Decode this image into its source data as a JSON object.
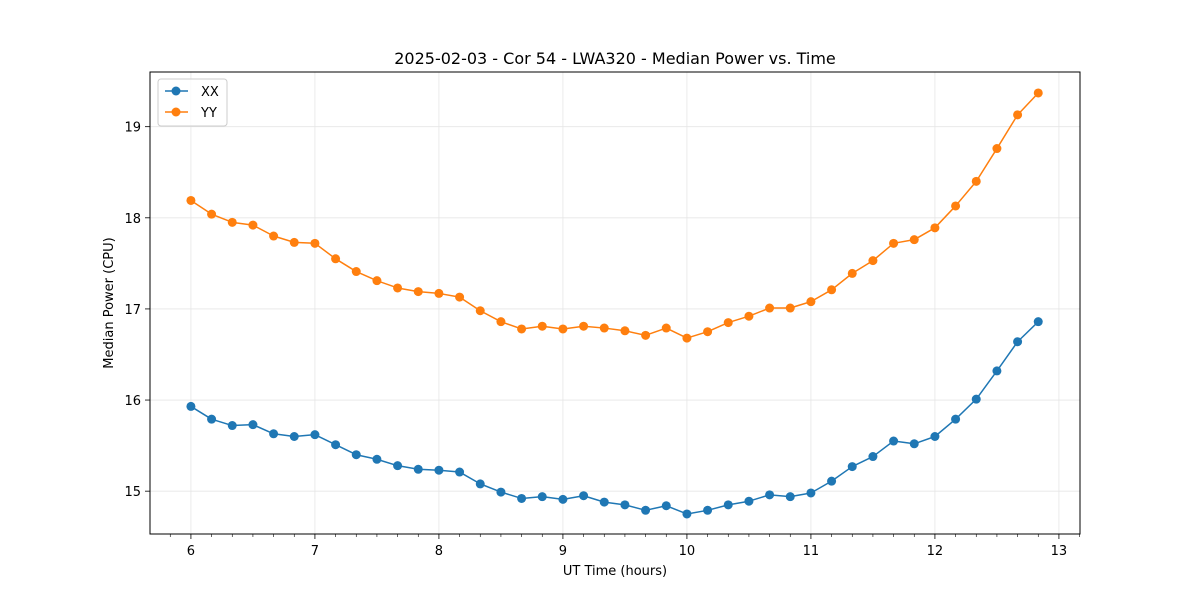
{
  "chart_data": {
    "type": "line",
    "title": "2025-02-03 - Cor 54 - LWA320 - Median Power vs. Time",
    "xlabel": "UT Time (hours)",
    "ylabel": "Median Power (CPU)",
    "xlim": [
      5.67,
      13.17
    ],
    "ylim": [
      14.53,
      19.6
    ],
    "xticks": [
      6,
      7,
      8,
      9,
      10,
      11,
      12,
      13
    ],
    "yticks": [
      15,
      16,
      17,
      18,
      19
    ],
    "grid": true,
    "legend_position": "top-left",
    "x": [
      6.0,
      6.1667,
      6.3333,
      6.5,
      6.6667,
      6.8333,
      7.0,
      7.1667,
      7.3333,
      7.5,
      7.6667,
      7.8333,
      8.0,
      8.1667,
      8.3333,
      8.5,
      8.6667,
      8.8333,
      9.0,
      9.1667,
      9.3333,
      9.5,
      9.6667,
      9.8333,
      10.0,
      10.1667,
      10.3333,
      10.5,
      10.6667,
      10.8333,
      11.0,
      11.1667,
      11.3333,
      11.5,
      11.6667,
      11.8333,
      12.0,
      12.1667,
      12.3333,
      12.5,
      12.6667,
      12.8333
    ],
    "series": [
      {
        "name": "XX",
        "color": "#1f77b4",
        "values": [
          15.93,
          15.79,
          15.72,
          15.73,
          15.63,
          15.6,
          15.62,
          15.51,
          15.4,
          15.35,
          15.28,
          15.24,
          15.23,
          15.21,
          15.08,
          14.99,
          14.92,
          14.94,
          14.91,
          14.95,
          14.88,
          14.85,
          14.79,
          14.84,
          14.75,
          14.79,
          14.85,
          14.89,
          14.96,
          14.94,
          14.98,
          15.11,
          15.27,
          15.38,
          15.55,
          15.52,
          15.6,
          15.79,
          16.01,
          16.32,
          16.64,
          16.86
        ]
      },
      {
        "name": "YY",
        "color": "#ff7f0e",
        "values": [
          18.19,
          18.04,
          17.95,
          17.92,
          17.8,
          17.73,
          17.72,
          17.55,
          17.41,
          17.31,
          17.23,
          17.19,
          17.17,
          17.13,
          16.98,
          16.86,
          16.78,
          16.81,
          16.78,
          16.81,
          16.79,
          16.76,
          16.71,
          16.79,
          16.68,
          16.75,
          16.85,
          16.92,
          17.01,
          17.01,
          17.08,
          17.21,
          17.39,
          17.53,
          17.72,
          17.76,
          17.89,
          18.13,
          18.4,
          18.76,
          19.13,
          19.37
        ]
      }
    ]
  }
}
